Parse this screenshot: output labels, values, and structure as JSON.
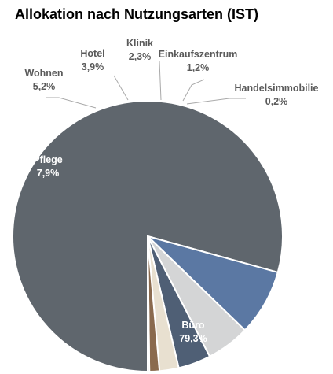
{
  "title": "Allokation nach Nutzungsarten (IST)",
  "chart_data": {
    "type": "pie",
    "title": "Allokation nach Nutzungsarten (IST)",
    "slices": [
      {
        "label": "Büro",
        "value": 79.3,
        "value_label": "79,3%",
        "color": "#5f666d",
        "label_color": "#ffffff"
      },
      {
        "label": "Pflege",
        "value": 7.9,
        "value_label": "7,9%",
        "color": "#5b78a3",
        "label_color": "#ffffff"
      },
      {
        "label": "Wohnen",
        "value": 5.2,
        "value_label": "5,2%",
        "color": "#d4d5d6",
        "label_color": "#5a5a5a"
      },
      {
        "label": "Hotel",
        "value": 3.9,
        "value_label": "3,9%",
        "color": "#4f5f75",
        "label_color": "#5a5a5a"
      },
      {
        "label": "Klinik",
        "value": 2.3,
        "value_label": "2,3%",
        "color": "#e8e0d0",
        "label_color": "#5a5a5a"
      },
      {
        "label": "Einkaufszentrum",
        "value": 1.2,
        "value_label": "1,2%",
        "color": "#8a6a4e",
        "label_color": "#5a5a5a"
      },
      {
        "label": "Handelsimmobilie",
        "value": 0.2,
        "value_label": "0,2%",
        "color": "#b8bcc0",
        "label_color": "#5a5a5a"
      }
    ],
    "legend": "none"
  }
}
